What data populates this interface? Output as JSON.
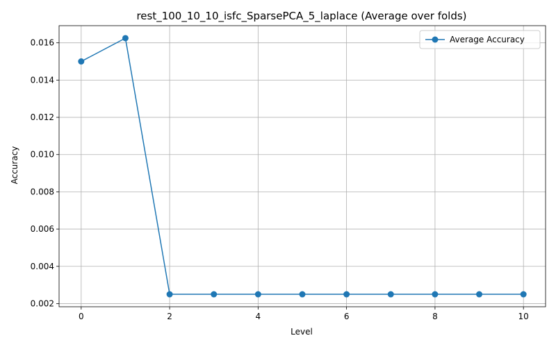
{
  "chart_data": {
    "type": "line",
    "title": "rest_100_10_10_isfc_SparsePCA_5_laplace (Average over folds)",
    "xlabel": "Level",
    "ylabel": "Accuracy",
    "xlim": [
      -0.5,
      10.5
    ],
    "ylim": [
      0.00183,
      0.01692
    ],
    "x_ticks": [
      0,
      2,
      4,
      6,
      8,
      10
    ],
    "x_tick_labels": [
      "0",
      "2",
      "4",
      "6",
      "8",
      "10"
    ],
    "y_ticks": [
      0.002,
      0.004,
      0.006,
      0.008,
      0.01,
      0.012,
      0.014,
      0.016
    ],
    "y_tick_labels": [
      "0.002",
      "0.004",
      "0.006",
      "0.008",
      "0.010",
      "0.012",
      "0.014",
      "0.016"
    ],
    "grid": true,
    "legend_position": "top-right",
    "series": [
      {
        "name": "Average Accuracy",
        "color": "#1f77b4",
        "marker": "circle",
        "x": [
          0,
          1,
          2,
          3,
          4,
          5,
          6,
          7,
          8,
          9,
          10
        ],
        "y": [
          0.015,
          0.01625,
          0.0025,
          0.0025,
          0.0025,
          0.0025,
          0.0025,
          0.0025,
          0.0025,
          0.0025,
          0.0025
        ]
      }
    ]
  }
}
